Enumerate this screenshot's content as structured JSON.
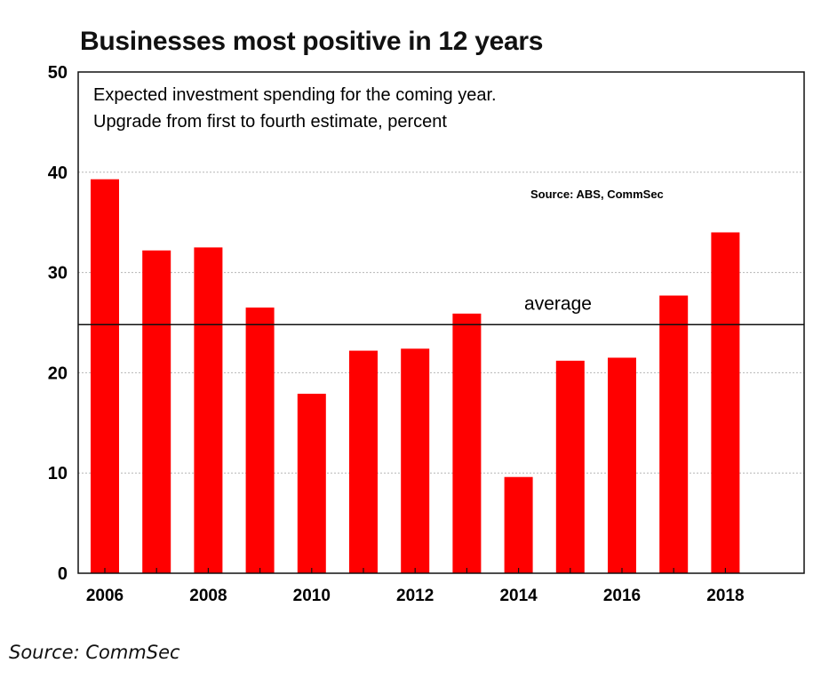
{
  "chart_data": {
    "type": "bar",
    "title": "Businesses most positive in 12 years",
    "subtitle_lines": [
      "Expected investment spending for the coming year.",
      "Upgrade from first to fourth estimate, percent"
    ],
    "source_note": "Source: ABS, CommSec",
    "categories": [
      "2006",
      "2007",
      "2008",
      "2009",
      "2010",
      "2011",
      "2012",
      "2013",
      "2014",
      "2015",
      "2016",
      "2017",
      "2018"
    ],
    "x_tick_labels": [
      "2006",
      "2008",
      "2010",
      "2012",
      "2014",
      "2016",
      "2018"
    ],
    "series": [
      {
        "name": "Upgrade",
        "color": "#ff0000",
        "values": [
          39.3,
          32.2,
          32.5,
          26.5,
          17.9,
          22.2,
          22.4,
          25.9,
          9.6,
          21.2,
          21.5,
          27.7,
          34.0
        ]
      }
    ],
    "average": {
      "label": "average",
      "value": 24.8
    },
    "ylim": [
      0,
      50
    ],
    "y_ticks": [
      0,
      10,
      20,
      30,
      40,
      50
    ],
    "grid": true,
    "xlabel": "",
    "ylabel": ""
  },
  "footer": {
    "source": "Source: CommSec"
  }
}
